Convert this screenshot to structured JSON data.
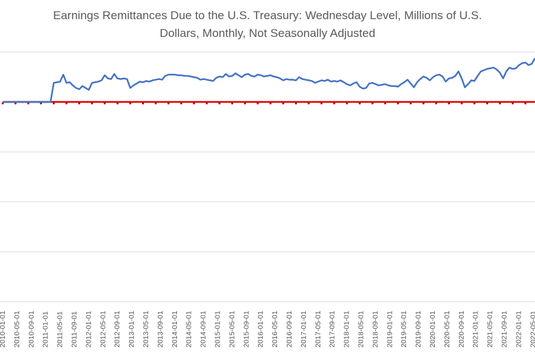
{
  "chart_data": {
    "type": "line",
    "title_lines": [
      "Earnings Remittances Due to the U.S. Treasury: Wednesday Level, Millions of U.S.",
      "Dollars, Monthly, Not Seasonally Adjusted"
    ],
    "xlabel": "",
    "ylabel": "",
    "grid": true,
    "x_tick_labels": [
      "2010-01-01",
      "2010-05-01",
      "2010-09-01",
      "2011-01-01",
      "2011-05-01",
      "2011-09-01",
      "2012-01-01",
      "2012-05-01",
      "2012-09-01",
      "2013-01-01",
      "2013-05-01",
      "2013-09-01",
      "2014-01-01",
      "2014-05-01",
      "2014-09-01",
      "2015-01-01",
      "2015-05-01",
      "2015-09-01",
      "2016-01-01",
      "2016-05-01",
      "2016-09-01",
      "2017-01-01",
      "2017-05-01",
      "2017-09-01",
      "2018-01-01",
      "2018-05-01",
      "2018-09-01",
      "2019-01-01",
      "2019-05-01",
      "2019-09-01",
      "2020-01-01",
      "2020-05-01",
      "2020-09-01",
      "2021-01-01",
      "2021-05-01",
      "2021-09-01",
      "2022-01-01",
      "2022-05-01"
    ],
    "series": [
      {
        "color": "#4472c4",
        "style": "solid",
        "values": [
          0,
          0,
          0,
          0,
          0,
          0,
          0,
          0,
          0,
          0,
          0,
          0,
          0,
          0,
          0,
          0,
          3000,
          3100,
          3200,
          4300,
          3000,
          3100,
          2600,
          2200,
          2000,
          2500,
          2200,
          1900,
          3000,
          3100,
          3200,
          3400,
          4200,
          3700,
          3600,
          4400,
          3700,
          3600,
          3700,
          3600,
          2200,
          2600,
          2900,
          3200,
          3100,
          3300,
          3200,
          3400,
          3500,
          3600,
          3500,
          4100,
          4300,
          4300,
          4300,
          4200,
          4200,
          4100,
          4100,
          4000,
          3900,
          3800,
          3500,
          3600,
          3500,
          3400,
          3300,
          3800,
          4000,
          3900,
          4400,
          4000,
          4100,
          4500,
          4200,
          3900,
          4300,
          4400,
          4100,
          4000,
          4300,
          4200,
          4000,
          4100,
          4200,
          4000,
          3900,
          3700,
          3400,
          3600,
          3500,
          3500,
          3400,
          3900,
          3600,
          3500,
          3400,
          3300,
          3000,
          3200,
          3400,
          3300,
          3500,
          3200,
          3300,
          3200,
          3400,
          3100,
          2800,
          2600,
          2900,
          3100,
          2400,
          2100,
          2200,
          2900,
          3000,
          2800,
          2600,
          2700,
          2800,
          2600,
          2500,
          2500,
          2400,
          2800,
          3100,
          3500,
          2900,
          2300,
          3100,
          3600,
          4000,
          3800,
          3400,
          3900,
          4200,
          4300,
          4000,
          3200,
          3700,
          3800,
          4100,
          4800,
          3700,
          2300,
          2800,
          3400,
          3300,
          4100,
          4800,
          5000,
          5200,
          5300,
          5400,
          5100,
          4600,
          3700,
          4800,
          5400,
          5200,
          5300,
          5800,
          6100,
          6200,
          5800,
          6000,
          6900
        ]
      },
      {
        "color": "#e00000",
        "style": "dashed",
        "constant": 0
      }
    ]
  }
}
